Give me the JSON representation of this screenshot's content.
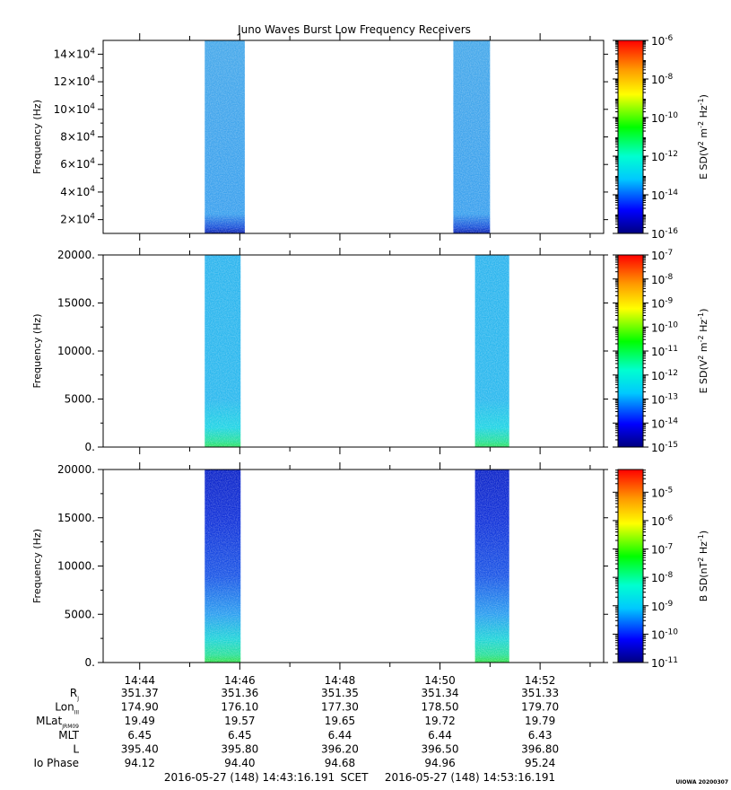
{
  "title": "Juno Waves Burst Low Frequency Receivers",
  "stamp": "UIOWA 20200307",
  "chart_data": [
    {
      "type": "heatmap",
      "panel": "top",
      "ylabel": "Frequency (Hz)",
      "ylim": [
        10000,
        150000
      ],
      "yticks": [
        {
          "value": 20000,
          "mantissa": "2",
          "exp": "4"
        },
        {
          "value": 40000,
          "mantissa": "4",
          "exp": "4"
        },
        {
          "value": 60000,
          "mantissa": "6",
          "exp": "4"
        },
        {
          "value": 80000,
          "mantissa": "8",
          "exp": "4"
        },
        {
          "value": 100000,
          "mantissa": "10",
          "exp": "4"
        },
        {
          "value": 120000,
          "mantissa": "12",
          "exp": "4"
        },
        {
          "value": 140000,
          "mantissa": "14",
          "exp": "4"
        }
      ],
      "bursts": [
        {
          "start": "14:45:18",
          "end": "14:46:06"
        },
        {
          "start": "14:50:16",
          "end": "14:51:00"
        }
      ],
      "colorbar": {
        "label_main": "E SD(V",
        "label_parts": [
          "2",
          " m",
          "-2",
          " Hz",
          "-1",
          ")"
        ],
        "scale": "log",
        "min_exp": -16,
        "max_exp": -6,
        "ticks": [
          {
            "exp": "-6"
          },
          {
            "exp": "-8"
          },
          {
            "exp": "-10"
          },
          {
            "exp": "-12"
          },
          {
            "exp": "-14"
          },
          {
            "exp": "-16"
          }
        ]
      }
    },
    {
      "type": "heatmap",
      "panel": "middle",
      "ylabel": "Frequency (Hz)",
      "ylim": [
        0,
        20000
      ],
      "yticks": [
        {
          "value": 0,
          "label": "0."
        },
        {
          "value": 5000,
          "label": "5000."
        },
        {
          "value": 10000,
          "label": "10000."
        },
        {
          "value": 15000,
          "label": "15000."
        },
        {
          "value": 20000,
          "label": "20000."
        }
      ],
      "bursts": [
        {
          "start": "14:45:18",
          "end": "14:46:01"
        },
        {
          "start": "14:50:42",
          "end": "14:51:23"
        }
      ],
      "colorbar": {
        "label_main": "E SD(V",
        "label_parts": [
          "2",
          " m",
          "-2",
          " Hz",
          "-1",
          ")"
        ],
        "scale": "log",
        "min_exp": -15,
        "max_exp": -7,
        "ticks": [
          {
            "exp": "-7"
          },
          {
            "exp": "-8"
          },
          {
            "exp": "-9"
          },
          {
            "exp": "-10"
          },
          {
            "exp": "-11"
          },
          {
            "exp": "-12"
          },
          {
            "exp": "-13"
          },
          {
            "exp": "-14"
          },
          {
            "exp": "-15"
          }
        ]
      }
    },
    {
      "type": "heatmap",
      "panel": "bottom",
      "ylabel": "Frequency (Hz)",
      "ylim": [
        0,
        20000
      ],
      "yticks": [
        {
          "value": 0,
          "label": "0."
        },
        {
          "value": 5000,
          "label": "5000."
        },
        {
          "value": 10000,
          "label": "10000."
        },
        {
          "value": 15000,
          "label": "15000."
        },
        {
          "value": 20000,
          "label": "20000."
        }
      ],
      "bursts": [
        {
          "start": "14:45:18",
          "end": "14:46:01"
        },
        {
          "start": "14:50:42",
          "end": "14:51:23"
        }
      ],
      "colorbar": {
        "label_main": "B SD(nT",
        "label_parts": [
          "2",
          " Hz",
          "-1",
          ")"
        ],
        "scale": "log",
        "min_exp": -11,
        "max_exp": -4.2,
        "ticks": [
          {
            "exp": "-5"
          },
          {
            "exp": "-6"
          },
          {
            "exp": "-7"
          },
          {
            "exp": "-8"
          },
          {
            "exp": "-9"
          },
          {
            "exp": "-10"
          },
          {
            "exp": "-11"
          }
        ]
      }
    }
  ],
  "time_axis": {
    "xlim": [
      "14:43:16.191",
      "14:53:16.191"
    ],
    "major_ticks": [
      "14:44",
      "14:46",
      "14:48",
      "14:50",
      "14:52"
    ],
    "minor_ticks": [
      "14:45",
      "14:47",
      "14:49",
      "14:51",
      "14:53"
    ]
  },
  "ephemeris": [
    {
      "name": "R",
      "sub": "J",
      "values": [
        "351.37",
        "351.36",
        "351.35",
        "351.34",
        "351.33"
      ]
    },
    {
      "name": "Lon",
      "sub": "III",
      "values": [
        "174.90",
        "176.10",
        "177.30",
        "178.50",
        "179.70"
      ]
    },
    {
      "name": "MLat",
      "sub": "JRM09",
      "values": [
        "19.49",
        "19.57",
        "19.65",
        "19.72",
        "19.79"
      ]
    },
    {
      "name": "MLT",
      "sub": "",
      "values": [
        "6.45",
        "6.45",
        "6.44",
        "6.44",
        "6.43"
      ]
    },
    {
      "name": "L",
      "sub": "",
      "values": [
        "395.40",
        "395.80",
        "396.20",
        "396.50",
        "396.80"
      ]
    },
    {
      "name": "Io Phase",
      "sub": "",
      "values": [
        "94.12",
        "94.40",
        "94.68",
        "94.96",
        "95.24"
      ]
    }
  ],
  "footer": {
    "start": "2016-05-27 (148) 14:43:16.191",
    "label": "SCET",
    "end": "2016-05-27 (148) 14:53:16.191"
  }
}
